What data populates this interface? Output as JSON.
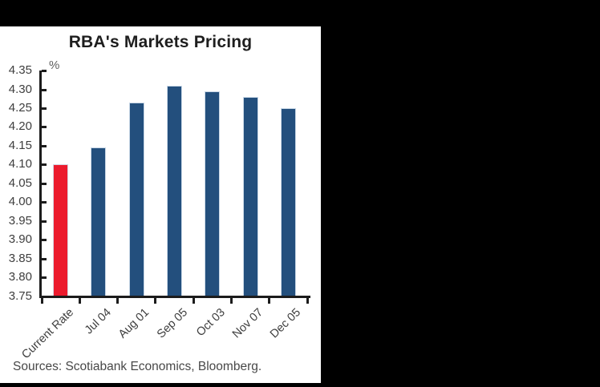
{
  "chart_data": {
    "type": "bar",
    "title": "RBA's Markets Pricing",
    "subtitle": "",
    "xlabel": "",
    "ylabel": "%",
    "categories": [
      "Current Rate",
      "Jul 04",
      "Aug 01",
      "Sep 05",
      "Oct 03",
      "Nov 07",
      "Dec 05"
    ],
    "values": [
      4.1,
      4.145,
      4.265,
      4.31,
      4.295,
      4.28,
      4.25
    ],
    "bar_colors": [
      "#EC1B2D",
      "#234F7D",
      "#234F7D",
      "#234F7D",
      "#234F7D",
      "#234F7D",
      "#234F7D"
    ],
    "highlight_category": "Current Rate",
    "ylim": [
      3.75,
      4.35
    ],
    "ytick_labels": [
      "4.35",
      "4.30",
      "4.25",
      "4.20",
      "4.15",
      "4.10",
      "4.05",
      "4.00",
      "3.95",
      "3.90",
      "3.85",
      "3.80",
      "3.75"
    ],
    "grid": false,
    "legend": "none"
  },
  "footer": {
    "sources": "Sources: Scotiabank Economics, Bloomberg."
  },
  "colors": {
    "accent_red": "#EC1B2D",
    "accent_blue": "#234F7D",
    "axis": "#1c1c1c",
    "panel_background": "#FFFFFF",
    "page_background": "#000000"
  }
}
